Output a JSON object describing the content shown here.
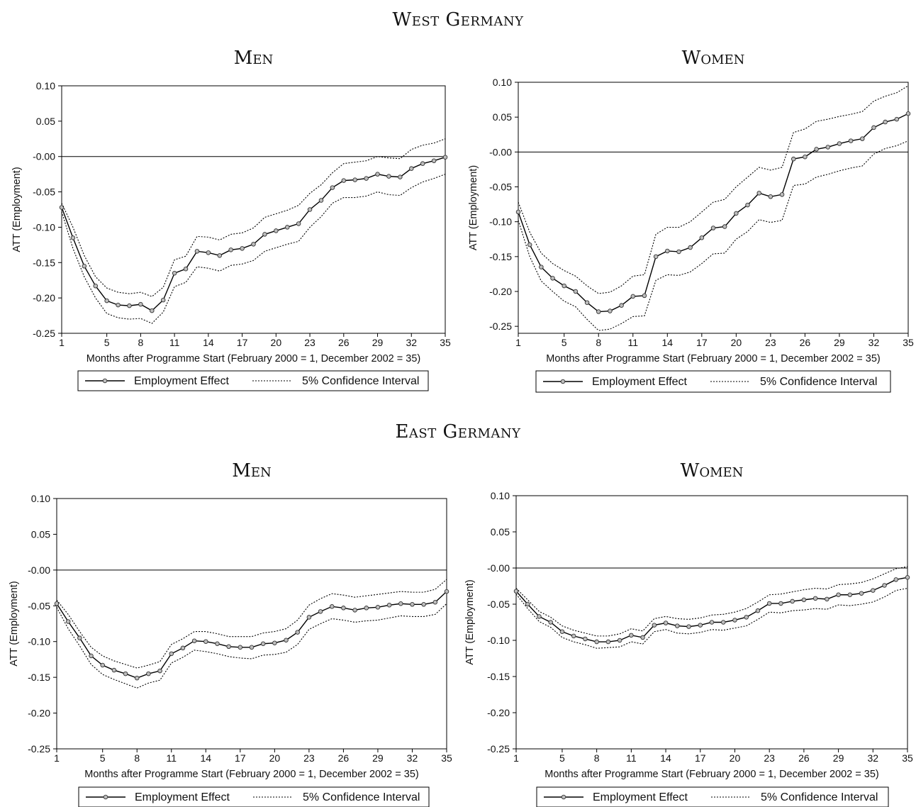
{
  "figure": {
    "regions": [
      "West Germany",
      "East Germany"
    ]
  },
  "chart_data": [
    {
      "type": "line",
      "region": "West Germany",
      "title": "Men",
      "xlabel": "Months after Programme Start (February 2000 = 1, December 2002 = 35)",
      "ylabel": "ATT (Employment)",
      "xlim": [
        1,
        35
      ],
      "ylim": [
        -0.25,
        0.1
      ],
      "x_ticks": [
        1,
        5,
        8,
        11,
        14,
        17,
        20,
        23,
        26,
        29,
        32,
        35
      ],
      "y_ticks": [
        "0.10",
        "0.05",
        "-0.00",
        "-0.05",
        "-0.10",
        "-0.15",
        "-0.20",
        "-0.25"
      ],
      "legend": [
        "Employment Effect",
        "5% Confidence Interval"
      ],
      "legend_position": "bottom",
      "zero_line": true,
      "series": [
        {
          "name": "Employment Effect",
          "style": "solid-markers",
          "values": [
            -0.072,
            -0.115,
            -0.155,
            -0.183,
            -0.204,
            -0.21,
            -0.211,
            -0.209,
            -0.218,
            -0.203,
            -0.165,
            -0.159,
            -0.134,
            -0.136,
            -0.14,
            -0.132,
            -0.13,
            -0.124,
            -0.11,
            -0.105,
            -0.1,
            -0.095,
            -0.075,
            -0.062,
            -0.044,
            -0.034,
            -0.033,
            -0.031,
            -0.025,
            -0.028,
            -0.029,
            -0.017,
            -0.01,
            -0.006,
            -0.001
          ]
        },
        {
          "name": "5% Confidence Interval",
          "style": "dotted",
          "values": [
            -0.066,
            -0.1,
            -0.14,
            -0.17,
            -0.186,
            -0.192,
            -0.194,
            -0.192,
            -0.198,
            -0.185,
            -0.146,
            -0.141,
            -0.113,
            -0.114,
            -0.118,
            -0.11,
            -0.108,
            -0.101,
            -0.086,
            -0.081,
            -0.076,
            -0.069,
            -0.052,
            -0.04,
            -0.023,
            -0.01,
            -0.008,
            -0.006,
            0.0,
            -0.002,
            -0.003,
            0.01,
            0.016,
            0.019,
            0.025
          ]
        },
        {
          "name": "5% Confidence Interval lower",
          "style": "dotted",
          "values": [
            -0.078,
            -0.13,
            -0.17,
            -0.2,
            -0.222,
            -0.228,
            -0.23,
            -0.229,
            -0.236,
            -0.22,
            -0.184,
            -0.178,
            -0.156,
            -0.158,
            -0.162,
            -0.154,
            -0.152,
            -0.147,
            -0.134,
            -0.129,
            -0.124,
            -0.12,
            -0.1,
            -0.085,
            -0.066,
            -0.058,
            -0.058,
            -0.056,
            -0.05,
            -0.054,
            -0.055,
            -0.044,
            -0.036,
            -0.031,
            -0.025
          ]
        }
      ]
    },
    {
      "type": "line",
      "region": "West Germany",
      "title": "Women",
      "xlabel": "Months after Programme Start (February 2000 = 1, December 2002 = 35)",
      "ylabel": "ATT (Employment)",
      "xlim": [
        1,
        35
      ],
      "ylim": [
        -0.26,
        0.1
      ],
      "x_ticks": [
        1,
        5,
        8,
        11,
        14,
        17,
        20,
        23,
        26,
        29,
        32,
        35
      ],
      "y_ticks": [
        "0.10",
        "0.05",
        "-0.00",
        "-0.05",
        "-0.10",
        "-0.15",
        "-0.20",
        "-0.25"
      ],
      "legend": [
        "Employment Effect",
        "5% Confidence Interval"
      ],
      "legend_position": "bottom",
      "zero_line": true,
      "series": [
        {
          "name": "Employment Effect",
          "style": "solid-markers",
          "values": [
            -0.086,
            -0.133,
            -0.165,
            -0.181,
            -0.192,
            -0.2,
            -0.216,
            -0.229,
            -0.228,
            -0.22,
            -0.207,
            -0.206,
            -0.15,
            -0.142,
            -0.143,
            -0.137,
            -0.123,
            -0.109,
            -0.107,
            -0.088,
            -0.076,
            -0.059,
            -0.064,
            -0.061,
            -0.01,
            -0.007,
            0.004,
            0.007,
            0.012,
            0.016,
            0.019,
            0.035,
            0.043,
            0.047,
            0.055
          ]
        },
        {
          "name": "5% Confidence Interval",
          "style": "dotted",
          "values": [
            -0.072,
            -0.115,
            -0.145,
            -0.16,
            -0.17,
            -0.178,
            -0.192,
            -0.203,
            -0.201,
            -0.192,
            -0.178,
            -0.176,
            -0.118,
            -0.108,
            -0.108,
            -0.1,
            -0.086,
            -0.072,
            -0.068,
            -0.05,
            -0.036,
            -0.022,
            -0.026,
            -0.022,
            0.028,
            0.033,
            0.044,
            0.047,
            0.051,
            0.054,
            0.058,
            0.073,
            0.08,
            0.085,
            0.095
          ]
        },
        {
          "name": "5% Confidence Interval lower",
          "style": "dotted",
          "values": [
            -0.098,
            -0.15,
            -0.185,
            -0.2,
            -0.214,
            -0.222,
            -0.24,
            -0.256,
            -0.254,
            -0.246,
            -0.236,
            -0.235,
            -0.184,
            -0.176,
            -0.177,
            -0.172,
            -0.16,
            -0.146,
            -0.145,
            -0.125,
            -0.114,
            -0.097,
            -0.101,
            -0.098,
            -0.048,
            -0.046,
            -0.036,
            -0.032,
            -0.027,
            -0.023,
            -0.02,
            -0.003,
            0.005,
            0.009,
            0.016
          ]
        }
      ]
    },
    {
      "type": "line",
      "region": "East Germany",
      "title": "Men",
      "xlabel": "Months after Programme Start (February 2000 = 1, December 2002 = 35)",
      "ylabel": "ATT (Employment)",
      "xlim": [
        1,
        35
      ],
      "ylim": [
        -0.25,
        0.1
      ],
      "x_ticks": [
        1,
        5,
        8,
        11,
        14,
        17,
        20,
        23,
        26,
        29,
        32,
        35
      ],
      "y_ticks": [
        "0.10",
        "0.05",
        "-0.00",
        "-0.05",
        "-0.10",
        "-0.15",
        "-0.20",
        "-0.25"
      ],
      "legend": [
        "Employment Effect",
        "5% Confidence Interval"
      ],
      "legend_position": "bottom",
      "zero_line": true,
      "series": [
        {
          "name": "Employment Effect",
          "style": "solid-markers",
          "values": [
            -0.047,
            -0.072,
            -0.095,
            -0.12,
            -0.133,
            -0.14,
            -0.145,
            -0.151,
            -0.145,
            -0.141,
            -0.117,
            -0.109,
            -0.099,
            -0.1,
            -0.103,
            -0.107,
            -0.108,
            -0.108,
            -0.103,
            -0.102,
            -0.098,
            -0.087,
            -0.066,
            -0.058,
            -0.051,
            -0.053,
            -0.056,
            -0.053,
            -0.052,
            -0.049,
            -0.047,
            -0.048,
            -0.048,
            -0.045,
            -0.03
          ]
        },
        {
          "name": "5% Confidence Interval",
          "style": "dotted",
          "values": [
            -0.042,
            -0.062,
            -0.086,
            -0.108,
            -0.12,
            -0.127,
            -0.132,
            -0.137,
            -0.133,
            -0.128,
            -0.104,
            -0.096,
            -0.086,
            -0.086,
            -0.089,
            -0.093,
            -0.093,
            -0.093,
            -0.088,
            -0.086,
            -0.082,
            -0.07,
            -0.049,
            -0.04,
            -0.033,
            -0.035,
            -0.038,
            -0.036,
            -0.034,
            -0.032,
            -0.03,
            -0.031,
            -0.031,
            -0.027,
            -0.013
          ]
        },
        {
          "name": "5% Confidence Interval lower",
          "style": "dotted",
          "values": [
            -0.052,
            -0.082,
            -0.106,
            -0.132,
            -0.146,
            -0.153,
            -0.159,
            -0.165,
            -0.158,
            -0.154,
            -0.13,
            -0.122,
            -0.112,
            -0.114,
            -0.117,
            -0.121,
            -0.123,
            -0.124,
            -0.119,
            -0.118,
            -0.115,
            -0.104,
            -0.083,
            -0.075,
            -0.068,
            -0.07,
            -0.073,
            -0.071,
            -0.07,
            -0.067,
            -0.064,
            -0.065,
            -0.065,
            -0.062,
            -0.047
          ]
        }
      ]
    },
    {
      "type": "line",
      "region": "East Germany",
      "title": "Women",
      "xlabel": "Months after Programme Start (February 2000 = 1, December 2002 = 35)",
      "ylabel": "ATT (Employment)",
      "xlim": [
        1,
        35
      ],
      "ylim": [
        -0.25,
        0.1
      ],
      "x_ticks": [
        1,
        5,
        8,
        11,
        14,
        17,
        20,
        23,
        26,
        29,
        32,
        35
      ],
      "y_ticks": [
        "0.10",
        "0.05",
        "-0.00",
        "-0.05",
        "-0.10",
        "-0.15",
        "-0.20",
        "-0.25"
      ],
      "legend": [
        "Employment Effect",
        "5% Confidence Interval"
      ],
      "legend_position": "bottom",
      "zero_line": true,
      "series": [
        {
          "name": "Employment Effect",
          "style": "solid-markers",
          "values": [
            -0.032,
            -0.05,
            -0.067,
            -0.075,
            -0.088,
            -0.094,
            -0.098,
            -0.102,
            -0.102,
            -0.1,
            -0.093,
            -0.096,
            -0.079,
            -0.076,
            -0.08,
            -0.081,
            -0.079,
            -0.075,
            -0.075,
            -0.072,
            -0.068,
            -0.059,
            -0.049,
            -0.049,
            -0.046,
            -0.044,
            -0.042,
            -0.043,
            -0.037,
            -0.037,
            -0.035,
            -0.031,
            -0.024,
            -0.016,
            -0.013
          ]
        },
        {
          "name": "5% Confidence Interval",
          "style": "dotted",
          "values": [
            -0.028,
            -0.044,
            -0.06,
            -0.068,
            -0.08,
            -0.086,
            -0.09,
            -0.094,
            -0.094,
            -0.091,
            -0.084,
            -0.087,
            -0.07,
            -0.067,
            -0.07,
            -0.071,
            -0.069,
            -0.065,
            -0.064,
            -0.061,
            -0.056,
            -0.047,
            -0.037,
            -0.036,
            -0.033,
            -0.03,
            -0.028,
            -0.029,
            -0.023,
            -0.022,
            -0.02,
            -0.015,
            -0.008,
            -0.001,
            0.002
          ]
        },
        {
          "name": "5% Confidence Interval lower",
          "style": "dotted",
          "values": [
            -0.036,
            -0.056,
            -0.074,
            -0.082,
            -0.096,
            -0.102,
            -0.106,
            -0.111,
            -0.11,
            -0.109,
            -0.102,
            -0.105,
            -0.088,
            -0.085,
            -0.09,
            -0.091,
            -0.089,
            -0.085,
            -0.086,
            -0.083,
            -0.08,
            -0.071,
            -0.061,
            -0.062,
            -0.059,
            -0.058,
            -0.056,
            -0.057,
            -0.051,
            -0.052,
            -0.05,
            -0.047,
            -0.04,
            -0.031,
            -0.028
          ]
        }
      ]
    }
  ]
}
